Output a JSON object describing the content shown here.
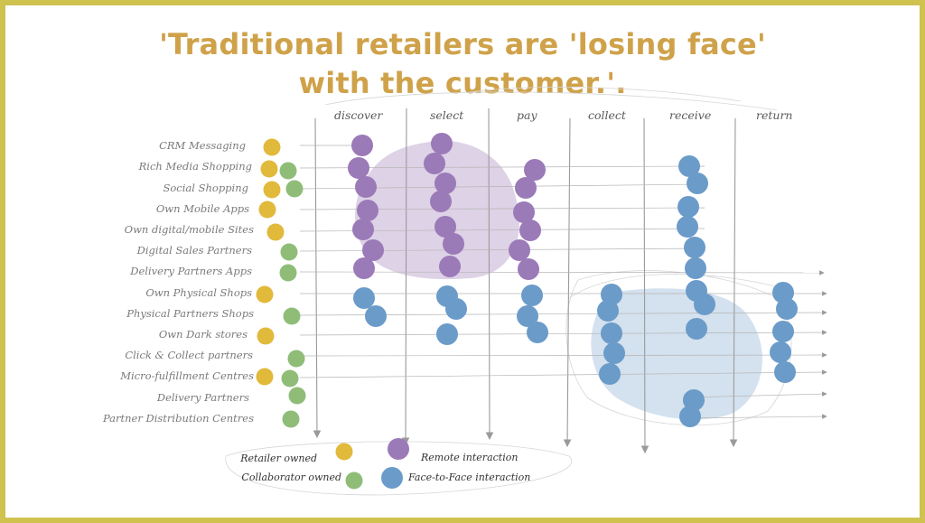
{
  "title": {
    "line1": "'Traditional retailers are 'losing face'",
    "line2": "with the customer.'."
  },
  "columns": [
    "discover",
    "select",
    "pay",
    "collect",
    "receive",
    "return"
  ],
  "rows": [
    "CRM Messaging",
    "Rich Media Shopping",
    "Social Shopping",
    "Own Mobile Apps",
    "Own digital/mobile Sites",
    "Digital Sales Partners",
    "Delivery Partners Apps",
    "Own Physical Shops",
    "Physical Partners Shops",
    "Own Dark stores",
    "Click & Collect partners",
    "Micro-fulfillment Centres",
    "Delivery Partners",
    "Partner Distribution Centres"
  ],
  "legend": {
    "retailer_owned": "Retailer owned",
    "collaborator_owned": "Collaborator owned",
    "remote_interaction": "Remote interaction",
    "face_to_face": "Face-to-Face interaction"
  },
  "colors": {
    "frame": "#cfc24f",
    "title": "#cfa24a",
    "retailer": "#e1b93b",
    "collaborator": "#8fbd78",
    "remote": "#9b7ab8",
    "face": "#6b9bc9",
    "remote_blob": "#ddd2e6",
    "face_blob": "#d4e1ee"
  }
}
